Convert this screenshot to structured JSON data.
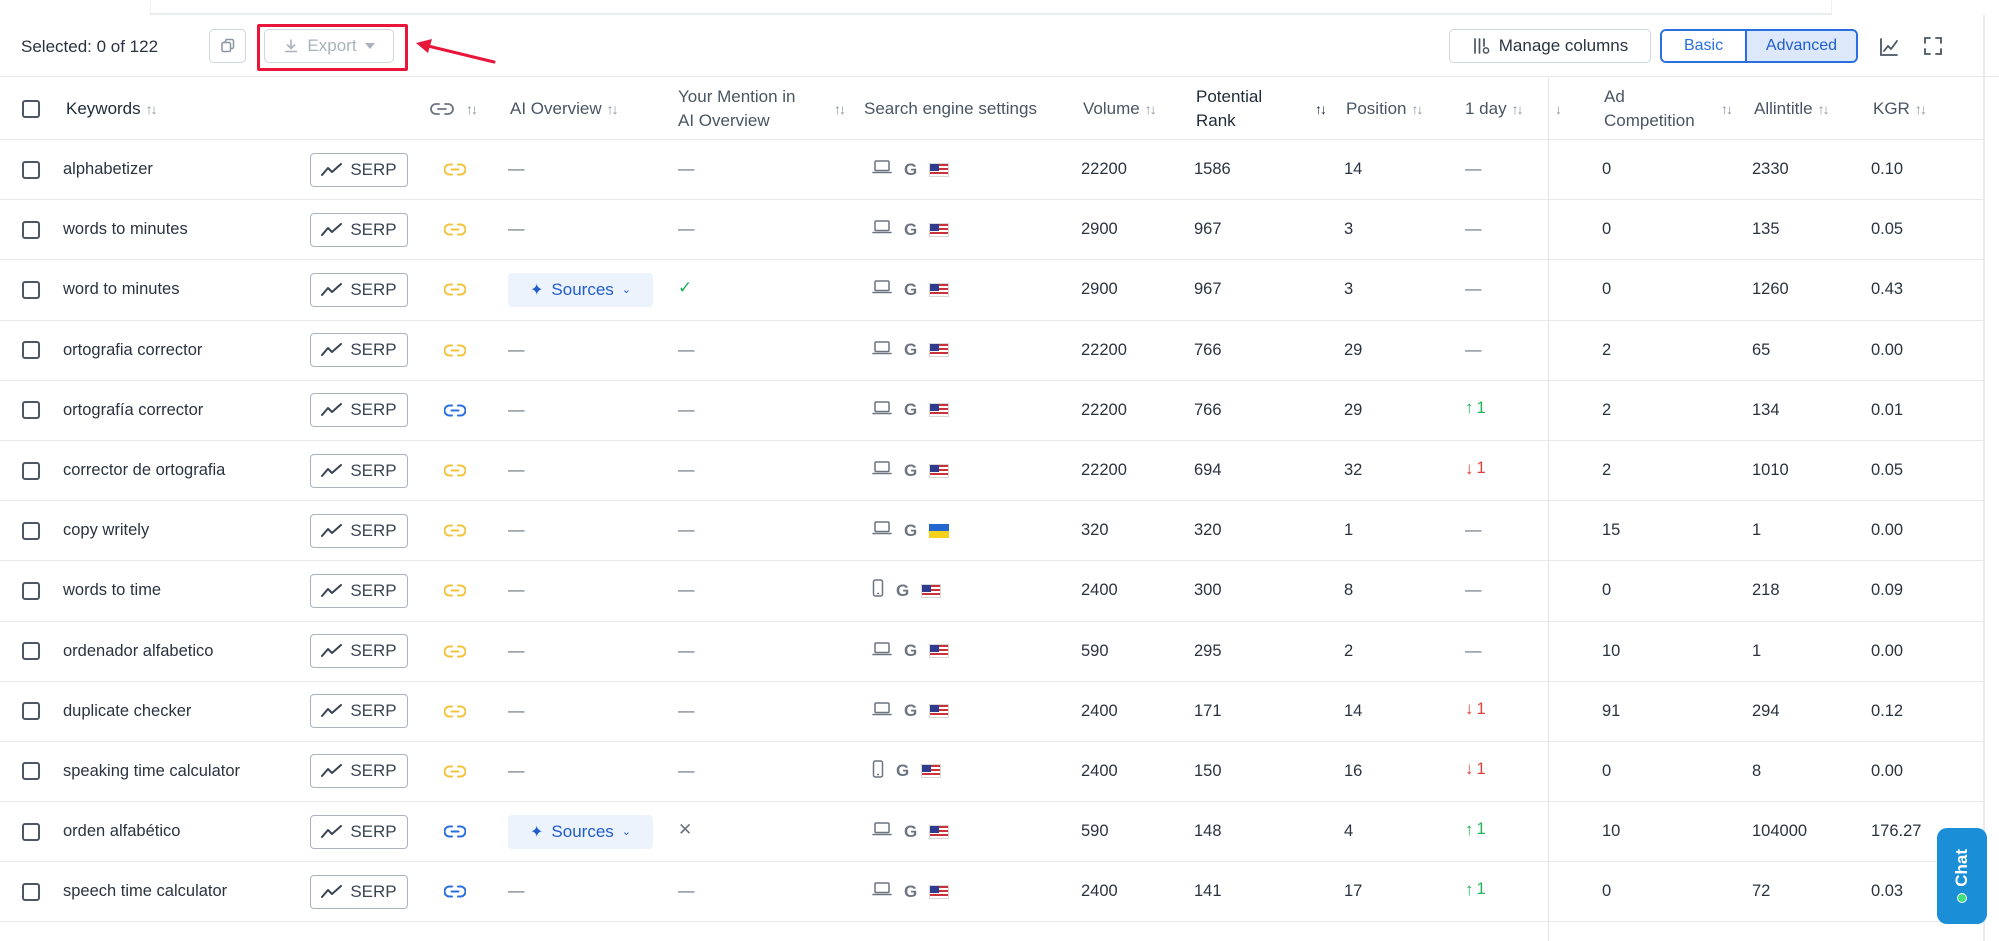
{
  "toolbar": {
    "selected_text": "Selected: 0 of 122",
    "export_label": "Export",
    "manage_columns_label": "Manage columns",
    "view_basic": "Basic",
    "view_advanced": "Advanced",
    "active_view": "Advanced"
  },
  "columns": {
    "keywords": "Keywords",
    "ai_overview": "AI Overview",
    "mention_line1": "Your Mention in",
    "mention_line2": "AI Overview",
    "search_engine": "Search engine settings",
    "volume": "Volume",
    "potential_line1": "Potential",
    "potential_line2": "Rank",
    "position": "Position",
    "one_day": "1 day",
    "ad_line1": "Ad",
    "ad_line2": "Competition",
    "allintitle": "Allintitle",
    "kgr": "KGR"
  },
  "labels": {
    "serp": "SERP",
    "sources": "Sources",
    "dash": "—",
    "chat": "Chat"
  },
  "colors": {
    "accent": "#2a6fe0",
    "link_yellow": "#f2c33c",
    "link_blue": "#2a6fe0",
    "trend_up": "#1fb35a",
    "trend_down": "#e0433b",
    "highlight": "#e8163b"
  },
  "rows": [
    {
      "keyword": "alphabetizer",
      "link": "yellow",
      "ai_overview": "—",
      "mention": "—",
      "device": "desktop",
      "flag": "us",
      "volume": "22200",
      "potential_rank": "1586",
      "position": "14",
      "day": {
        "type": "none",
        "text": "—"
      },
      "ad_competition": "0",
      "allintitle": "2330",
      "kgr": "0.10"
    },
    {
      "keyword": "words to minutes",
      "link": "yellow",
      "ai_overview": "—",
      "mention": "—",
      "device": "desktop",
      "flag": "us",
      "volume": "2900",
      "potential_rank": "967",
      "position": "3",
      "day": {
        "type": "none",
        "text": "—"
      },
      "ad_competition": "0",
      "allintitle": "135",
      "kgr": "0.05"
    },
    {
      "keyword": "word to minutes",
      "link": "yellow",
      "ai_overview": "sources",
      "mention": "check",
      "device": "desktop",
      "flag": "us",
      "volume": "2900",
      "potential_rank": "967",
      "position": "3",
      "day": {
        "type": "none",
        "text": "—"
      },
      "ad_competition": "0",
      "allintitle": "1260",
      "kgr": "0.43"
    },
    {
      "keyword": "ortografia corrector",
      "link": "yellow",
      "ai_overview": "—",
      "mention": "—",
      "device": "desktop",
      "flag": "us",
      "volume": "22200",
      "potential_rank": "766",
      "position": "29",
      "day": {
        "type": "none",
        "text": "—"
      },
      "ad_competition": "2",
      "allintitle": "65",
      "kgr": "0.00"
    },
    {
      "keyword": "ortografía corrector",
      "link": "blue",
      "ai_overview": "—",
      "mention": "—",
      "device": "desktop",
      "flag": "us",
      "volume": "22200",
      "potential_rank": "766",
      "position": "29",
      "day": {
        "type": "up",
        "text": "1"
      },
      "ad_competition": "2",
      "allintitle": "134",
      "kgr": "0.01"
    },
    {
      "keyword": "corrector de ortografia",
      "link": "yellow",
      "ai_overview": "—",
      "mention": "—",
      "device": "desktop",
      "flag": "us",
      "volume": "22200",
      "potential_rank": "694",
      "position": "32",
      "day": {
        "type": "down",
        "text": "1"
      },
      "ad_competition": "2",
      "allintitle": "1010",
      "kgr": "0.05"
    },
    {
      "keyword": "copy writely",
      "link": "yellow",
      "ai_overview": "—",
      "mention": "—",
      "device": "desktop",
      "flag": "ua",
      "volume": "320",
      "potential_rank": "320",
      "position": "1",
      "day": {
        "type": "none",
        "text": "—"
      },
      "ad_competition": "15",
      "allintitle": "1",
      "kgr": "0.00"
    },
    {
      "keyword": "words to time",
      "link": "yellow",
      "ai_overview": "—",
      "mention": "—",
      "device": "mobile",
      "flag": "us",
      "volume": "2400",
      "potential_rank": "300",
      "position": "8",
      "day": {
        "type": "none",
        "text": "—"
      },
      "ad_competition": "0",
      "allintitle": "218",
      "kgr": "0.09"
    },
    {
      "keyword": "ordenador alfabetico",
      "link": "yellow",
      "ai_overview": "—",
      "mention": "—",
      "device": "desktop",
      "flag": "us",
      "volume": "590",
      "potential_rank": "295",
      "position": "2",
      "day": {
        "type": "none",
        "text": "—"
      },
      "ad_competition": "10",
      "allintitle": "1",
      "kgr": "0.00"
    },
    {
      "keyword": "duplicate checker",
      "link": "yellow",
      "ai_overview": "—",
      "mention": "—",
      "device": "desktop",
      "flag": "us",
      "volume": "2400",
      "potential_rank": "171",
      "position": "14",
      "day": {
        "type": "down",
        "text": "1"
      },
      "ad_competition": "91",
      "allintitle": "294",
      "kgr": "0.12"
    },
    {
      "keyword": "speaking time calculator",
      "link": "yellow",
      "ai_overview": "—",
      "mention": "—",
      "device": "mobile",
      "flag": "us",
      "volume": "2400",
      "potential_rank": "150",
      "position": "16",
      "day": {
        "type": "down",
        "text": "1"
      },
      "ad_competition": "0",
      "allintitle": "8",
      "kgr": "0.00"
    },
    {
      "keyword": "orden alfabético",
      "link": "blue",
      "ai_overview": "sources",
      "mention": "cross",
      "device": "desktop",
      "flag": "us",
      "volume": "590",
      "potential_rank": "148",
      "position": "4",
      "day": {
        "type": "up",
        "text": "1"
      },
      "ad_competition": "10",
      "allintitle": "104000",
      "kgr": "176.27"
    },
    {
      "keyword": "speech time calculator",
      "link": "blue",
      "ai_overview": "—",
      "mention": "—",
      "device": "desktop",
      "flag": "us",
      "volume": "2400",
      "potential_rank": "141",
      "position": "17",
      "day": {
        "type": "up",
        "text": "1"
      },
      "ad_competition": "0",
      "allintitle": "72",
      "kgr": "0.03"
    }
  ]
}
